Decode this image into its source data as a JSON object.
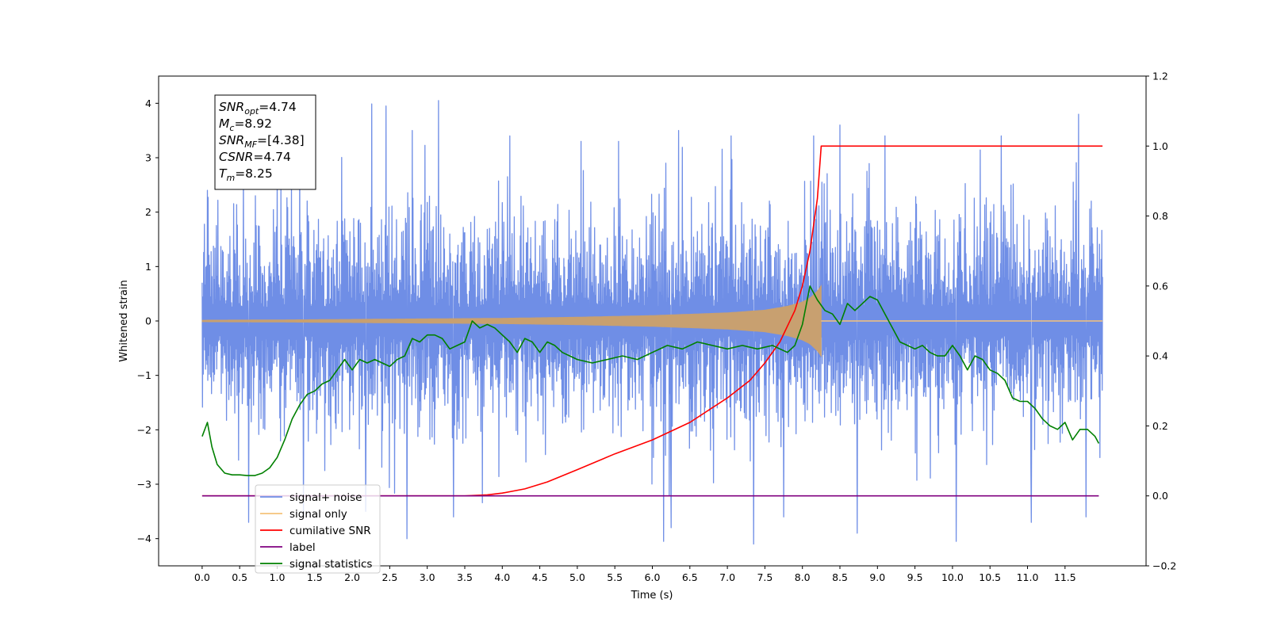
{
  "chart_data": {
    "type": "line",
    "xlabel": "Time (s)",
    "ylabel": "Whitened strain",
    "xlim": [
      -0.58,
      12.58
    ],
    "ylim": [
      -4.5,
      4.5
    ],
    "ylim_right": [
      -0.2,
      1.2
    ],
    "x_ticks": [
      "0.0",
      "0.5",
      "1.0",
      "1.5",
      "2.0",
      "2.5",
      "3.0",
      "3.5",
      "4.0",
      "4.5",
      "5.0",
      "5.5",
      "6.0",
      "6.5",
      "7.0",
      "7.5",
      "8.0",
      "8.5",
      "9.0",
      "9.5",
      "10.0",
      "10.5",
      "11.0",
      "11.5"
    ],
    "y_ticks_left": [
      "4",
      "3",
      "2",
      "1",
      "0",
      "−1",
      "−2",
      "−3",
      "−4"
    ],
    "y_ticks_right": [
      "1.2",
      "1.0",
      "0.8",
      "0.6",
      "0.4",
      "0.2",
      "0.0",
      "−0.2"
    ],
    "grid": false,
    "legend_placement": "lower-left",
    "legend": [
      {
        "label": "signal+ noise",
        "color": "#6f8ee6"
      },
      {
        "label": "signal only",
        "color": "#f5c27a"
      },
      {
        "label": "cumilative SNR",
        "color": "#ff0000"
      },
      {
        "label": "label",
        "color": "#800080"
      },
      {
        "label": "signal statistics",
        "color": "#008000"
      }
    ],
    "stats_box": [
      {
        "main": "SNR",
        "sub": "opt",
        "rest": "=4.74"
      },
      {
        "main": "M",
        "sub": "c",
        "rest": "=8.92"
      },
      {
        "main": "SNR",
        "sub": "MF",
        "rest": "=[4.38]"
      },
      {
        "main": "CSNR",
        "sub": "",
        "rest": "=4.74"
      },
      {
        "main": "T",
        "sub": "m",
        "rest": "=8.25"
      }
    ],
    "series": [
      {
        "name": "signal+ noise",
        "axis": "left",
        "color": "#6f8ee6",
        "x_range": [
          0.0,
          12.0
        ],
        "band": {
          "typical_amplitude": 1.3,
          "peak_max": 4.05,
          "peak_min": -4.1
        },
        "peaks": [
          {
            "x": 0.07,
            "y": 2.4
          },
          {
            "x": 0.55,
            "y": 2.9
          },
          {
            "x": 0.62,
            "y": -3.7
          },
          {
            "x": 1.3,
            "y": 3.1
          },
          {
            "x": 1.35,
            "y": -3.6
          },
          {
            "x": 2.18,
            "y": -3.5
          },
          {
            "x": 2.45,
            "y": 3.95
          },
          {
            "x": 2.73,
            "y": -4.0
          },
          {
            "x": 2.8,
            "y": 3.5
          },
          {
            "x": 3.15,
            "y": 4.05
          },
          {
            "x": 3.35,
            "y": -3.6
          },
          {
            "x": 4.1,
            "y": 3.4
          },
          {
            "x": 5.05,
            "y": 3.3
          },
          {
            "x": 5.55,
            "y": 3.3
          },
          {
            "x": 6.15,
            "y": -4.05
          },
          {
            "x": 6.25,
            "y": -3.8
          },
          {
            "x": 6.35,
            "y": 3.5
          },
          {
            "x": 7.05,
            "y": 3.4
          },
          {
            "x": 7.35,
            "y": -4.1
          },
          {
            "x": 7.75,
            "y": -3.6
          },
          {
            "x": 8.15,
            "y": 3.4
          },
          {
            "x": 8.5,
            "y": 3.6
          },
          {
            "x": 8.73,
            "y": -3.9
          },
          {
            "x": 9.1,
            "y": 3.4
          },
          {
            "x": 10.05,
            "y": -4.05
          },
          {
            "x": 10.65,
            "y": 3.4
          },
          {
            "x": 11.05,
            "y": -3.7
          },
          {
            "x": 11.68,
            "y": 3.8
          },
          {
            "x": 11.78,
            "y": -3.6
          }
        ]
      },
      {
        "name": "signal only",
        "axis": "left",
        "color": "#f5c27a",
        "fill_color": "#c8a070",
        "envelope": {
          "x": [
            0.0,
            1.0,
            2.0,
            3.0,
            4.0,
            5.0,
            6.0,
            7.0,
            7.5,
            7.8,
            8.0,
            8.1,
            8.2,
            8.25
          ],
          "amplitude": [
            0.015,
            0.02,
            0.03,
            0.04,
            0.05,
            0.07,
            0.1,
            0.15,
            0.2,
            0.27,
            0.35,
            0.42,
            0.55,
            0.65
          ]
        },
        "cutoff_x": 8.25
      },
      {
        "name": "cumilative SNR",
        "axis": "right",
        "color": "#ff0000",
        "x": [
          0.0,
          3.5,
          3.8,
          4.0,
          4.3,
          4.6,
          5.0,
          5.5,
          6.0,
          6.5,
          7.0,
          7.3,
          7.5,
          7.7,
          7.9,
          8.0,
          8.1,
          8.2,
          8.25,
          12.0
        ],
        "y": [
          0.0,
          0.0,
          0.003,
          0.008,
          0.02,
          0.04,
          0.075,
          0.12,
          0.16,
          0.21,
          0.28,
          0.33,
          0.38,
          0.44,
          0.53,
          0.6,
          0.7,
          0.85,
          1.0,
          1.0
        ]
      },
      {
        "name": "label",
        "axis": "right",
        "color": "#800080",
        "x": [
          0.0,
          11.95
        ],
        "y": [
          0.0,
          0.0
        ]
      },
      {
        "name": "signal statistics",
        "axis": "right",
        "color": "#008000",
        "x": [
          0.0,
          0.07,
          0.13,
          0.2,
          0.3,
          0.4,
          0.5,
          0.6,
          0.7,
          0.8,
          0.9,
          1.0,
          1.1,
          1.2,
          1.3,
          1.4,
          1.5,
          1.6,
          1.7,
          1.8,
          1.9,
          2.0,
          2.1,
          2.2,
          2.3,
          2.4,
          2.5,
          2.6,
          2.7,
          2.8,
          2.9,
          3.0,
          3.1,
          3.2,
          3.3,
          3.4,
          3.5,
          3.6,
          3.7,
          3.8,
          3.9,
          4.0,
          4.1,
          4.2,
          4.3,
          4.4,
          4.5,
          4.6,
          4.7,
          4.8,
          4.9,
          5.0,
          5.2,
          5.4,
          5.6,
          5.8,
          6.0,
          6.2,
          6.4,
          6.6,
          6.8,
          7.0,
          7.2,
          7.4,
          7.6,
          7.8,
          7.9,
          8.0,
          8.1,
          8.2,
          8.3,
          8.4,
          8.5,
          8.6,
          8.7,
          8.8,
          8.9,
          9.0,
          9.1,
          9.2,
          9.3,
          9.4,
          9.5,
          9.6,
          9.7,
          9.8,
          9.9,
          10.0,
          10.1,
          10.2,
          10.3,
          10.4,
          10.5,
          10.6,
          10.7,
          10.8,
          10.9,
          11.0,
          11.1,
          11.2,
          11.3,
          11.4,
          11.5,
          11.6,
          11.7,
          11.8,
          11.9,
          11.95
        ],
        "y": [
          0.17,
          0.21,
          0.14,
          0.09,
          0.065,
          0.06,
          0.06,
          0.058,
          0.058,
          0.065,
          0.08,
          0.11,
          0.16,
          0.22,
          0.26,
          0.29,
          0.3,
          0.32,
          0.33,
          0.36,
          0.39,
          0.36,
          0.39,
          0.38,
          0.39,
          0.38,
          0.37,
          0.39,
          0.4,
          0.45,
          0.44,
          0.46,
          0.46,
          0.45,
          0.42,
          0.43,
          0.44,
          0.5,
          0.48,
          0.49,
          0.48,
          0.46,
          0.44,
          0.41,
          0.45,
          0.44,
          0.41,
          0.44,
          0.43,
          0.41,
          0.4,
          0.39,
          0.38,
          0.39,
          0.4,
          0.39,
          0.41,
          0.43,
          0.42,
          0.44,
          0.43,
          0.42,
          0.43,
          0.42,
          0.43,
          0.41,
          0.43,
          0.49,
          0.6,
          0.56,
          0.53,
          0.52,
          0.49,
          0.55,
          0.53,
          0.55,
          0.57,
          0.56,
          0.52,
          0.48,
          0.44,
          0.43,
          0.42,
          0.43,
          0.41,
          0.4,
          0.4,
          0.43,
          0.4,
          0.36,
          0.4,
          0.39,
          0.36,
          0.35,
          0.33,
          0.28,
          0.27,
          0.27,
          0.25,
          0.22,
          0.2,
          0.19,
          0.21,
          0.16,
          0.19,
          0.19,
          0.17,
          0.15
        ]
      }
    ]
  }
}
